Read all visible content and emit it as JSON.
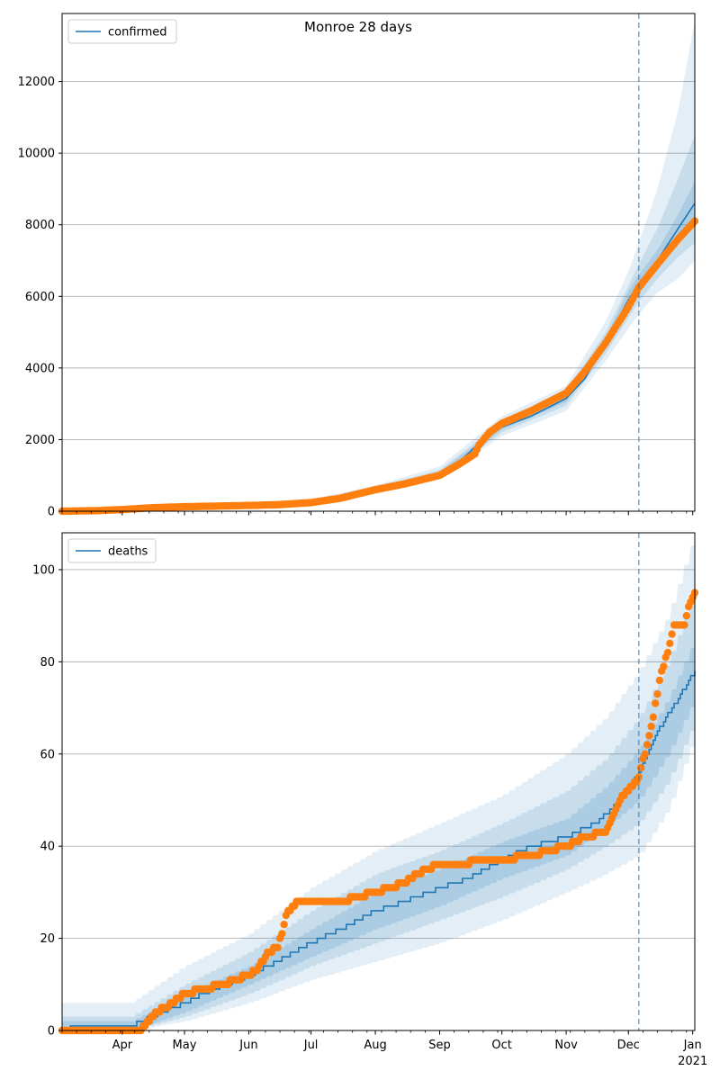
{
  "figure": {
    "title": "Monroe 28 days",
    "vline_date": "2020-12-06",
    "colors": {
      "band": "#1f77b4",
      "line": "#1f77b4",
      "points": "#ff7f0e",
      "grid": "#b0b0b0",
      "vline": "#1f77b4"
    }
  },
  "chart_data": [
    {
      "type": "line",
      "legend": "confirmed",
      "legend_position": "top-left",
      "grid": "horizontal",
      "xlim": [
        "2020-03-03",
        "2021-01-02"
      ],
      "ylim": [
        0,
        13900
      ],
      "yticks": [
        0,
        2000,
        4000,
        6000,
        8000,
        10000,
        12000
      ],
      "x_tick_labels": [
        {
          "date": "2020-04-01",
          "label": "Apr"
        },
        {
          "date": "2020-05-01",
          "label": "May"
        },
        {
          "date": "2020-06-01",
          "label": "Jun"
        },
        {
          "date": "2020-07-01",
          "label": "Jul"
        },
        {
          "date": "2020-08-01",
          "label": "Aug"
        },
        {
          "date": "2020-09-01",
          "label": "Sep"
        },
        {
          "date": "2020-10-01",
          "label": "Oct"
        },
        {
          "date": "2020-11-01",
          "label": "Nov"
        },
        {
          "date": "2020-12-01",
          "label": "Dec"
        },
        {
          "date": "2021-01-01",
          "label": "Jan",
          "sublabel": "2021"
        }
      ],
      "model_median": [
        [
          "2020-03-03",
          5
        ],
        [
          "2020-04-01",
          40
        ],
        [
          "2020-04-15",
          90
        ],
        [
          "2020-05-01",
          125
        ],
        [
          "2020-06-01",
          160
        ],
        [
          "2020-07-01",
          250
        ],
        [
          "2020-07-15",
          370
        ],
        [
          "2020-08-01",
          600
        ],
        [
          "2020-08-15",
          760
        ],
        [
          "2020-09-01",
          1050
        ],
        [
          "2020-09-10",
          1350
        ],
        [
          "2020-09-20",
          1900
        ],
        [
          "2020-10-01",
          2350
        ],
        [
          "2020-10-15",
          2650
        ],
        [
          "2020-11-01",
          3150
        ],
        [
          "2020-11-10",
          3700
        ],
        [
          "2020-11-20",
          4700
        ],
        [
          "2020-12-01",
          5900
        ],
        [
          "2020-12-06",
          6350
        ],
        [
          "2020-12-15",
          7000
        ],
        [
          "2020-12-25",
          7900
        ],
        [
          "2021-01-02",
          8600
        ]
      ],
      "band_outer": [
        [
          "2020-03-03",
          0,
          40
        ],
        [
          "2020-05-01",
          90,
          170
        ],
        [
          "2020-07-01",
          200,
          330
        ],
        [
          "2020-08-01",
          480,
          720
        ],
        [
          "2020-09-01",
          900,
          1250
        ],
        [
          "2020-10-01",
          2100,
          2650
        ],
        [
          "2020-11-01",
          2800,
          3500
        ],
        [
          "2020-11-20",
          4200,
          5300
        ],
        [
          "2020-12-01",
          5100,
          6700
        ],
        [
          "2020-12-06",
          5500,
          7500
        ],
        [
          "2020-12-15",
          6100,
          9000
        ],
        [
          "2020-12-25",
          6500,
          11200
        ],
        [
          "2021-01-02",
          7000,
          13700
        ]
      ],
      "band_mid": [
        [
          "2020-03-03",
          0,
          25
        ],
        [
          "2020-05-01",
          105,
          150
        ],
        [
          "2020-07-01",
          220,
          290
        ],
        [
          "2020-08-01",
          530,
          670
        ],
        [
          "2020-09-01",
          960,
          1150
        ],
        [
          "2020-10-01",
          2200,
          2500
        ],
        [
          "2020-11-01",
          2950,
          3350
        ],
        [
          "2020-11-20",
          4400,
          5000
        ],
        [
          "2020-12-01",
          5400,
          6300
        ],
        [
          "2020-12-06",
          5850,
          6900
        ],
        [
          "2020-12-15",
          6500,
          7900
        ],
        [
          "2020-12-25",
          7100,
          9300
        ],
        [
          "2021-01-02",
          7500,
          10500
        ]
      ],
      "band_inner": [
        [
          "2020-03-03",
          0,
          12
        ],
        [
          "2020-05-01",
          115,
          138
        ],
        [
          "2020-07-01",
          235,
          265
        ],
        [
          "2020-08-01",
          565,
          635
        ],
        [
          "2020-09-01",
          1000,
          1100
        ],
        [
          "2020-10-01",
          2280,
          2420
        ],
        [
          "2020-11-01",
          3050,
          3250
        ],
        [
          "2020-11-20",
          4550,
          4850
        ],
        [
          "2020-12-01",
          5650,
          6150
        ],
        [
          "2020-12-06",
          6100,
          6600
        ],
        [
          "2020-12-15",
          6750,
          7300
        ],
        [
          "2020-12-25",
          7500,
          8300
        ],
        [
          "2021-01-02",
          8000,
          9200
        ]
      ],
      "observed": [
        [
          "2020-03-03",
          0
        ],
        [
          "2020-03-20",
          15
        ],
        [
          "2020-04-01",
          45
        ],
        [
          "2020-04-15",
          95
        ],
        [
          "2020-05-01",
          125
        ],
        [
          "2020-05-15",
          140
        ],
        [
          "2020-06-01",
          160
        ],
        [
          "2020-06-15",
          180
        ],
        [
          "2020-07-01",
          240
        ],
        [
          "2020-07-15",
          360
        ],
        [
          "2020-08-01",
          600
        ],
        [
          "2020-08-15",
          760
        ],
        [
          "2020-09-01",
          1000
        ],
        [
          "2020-09-10",
          1300
        ],
        [
          "2020-09-18",
          1600
        ],
        [
          "2020-09-20",
          1850
        ],
        [
          "2020-09-25",
          2200
        ],
        [
          "2020-10-01",
          2450
        ],
        [
          "2020-10-15",
          2800
        ],
        [
          "2020-11-01",
          3300
        ],
        [
          "2020-11-10",
          3900
        ],
        [
          "2020-11-20",
          4700
        ],
        [
          "2020-12-01",
          5700
        ],
        [
          "2020-12-06",
          6250
        ],
        [
          "2020-12-15",
          6900
        ],
        [
          "2020-12-25",
          7600
        ],
        [
          "2021-01-02",
          8100
        ]
      ]
    },
    {
      "type": "line",
      "legend": "deaths",
      "legend_position": "top-left",
      "grid": "horizontal",
      "xlim": [
        "2020-03-03",
        "2021-01-02"
      ],
      "ylim": [
        0,
        108
      ],
      "yticks": [
        0,
        20,
        40,
        60,
        80,
        100
      ],
      "x_tick_labels": [
        {
          "date": "2020-04-01",
          "label": "Apr"
        },
        {
          "date": "2020-05-01",
          "label": "May"
        },
        {
          "date": "2020-06-01",
          "label": "Jun"
        },
        {
          "date": "2020-07-01",
          "label": "Jul"
        },
        {
          "date": "2020-08-01",
          "label": "Aug"
        },
        {
          "date": "2020-09-01",
          "label": "Sep"
        },
        {
          "date": "2020-10-01",
          "label": "Oct"
        },
        {
          "date": "2020-11-01",
          "label": "Nov"
        },
        {
          "date": "2020-12-01",
          "label": "Dec"
        },
        {
          "date": "2021-01-01",
          "label": "Jan",
          "sublabel": "2021"
        }
      ],
      "model_median": [
        [
          "2020-03-03",
          0
        ],
        [
          "2020-03-10",
          1
        ],
        [
          "2020-04-05",
          1
        ],
        [
          "2020-04-15",
          3
        ],
        [
          "2020-05-01",
          6
        ],
        [
          "2020-05-15",
          9
        ],
        [
          "2020-06-01",
          12
        ],
        [
          "2020-06-15",
          15
        ],
        [
          "2020-07-01",
          19
        ],
        [
          "2020-07-15",
          22
        ],
        [
          "2020-08-01",
          26
        ],
        [
          "2020-08-15",
          28
        ],
        [
          "2020-09-01",
          31
        ],
        [
          "2020-09-15",
          33
        ],
        [
          "2020-10-01",
          37
        ],
        [
          "2020-10-15",
          40
        ],
        [
          "2020-11-01",
          42
        ],
        [
          "2020-11-15",
          45
        ],
        [
          "2020-11-25",
          49
        ],
        [
          "2020-12-06",
          56
        ],
        [
          "2020-12-15",
          65
        ],
        [
          "2020-12-25",
          72
        ],
        [
          "2021-01-02",
          78
        ]
      ],
      "band_outer": [
        [
          "2020-03-03",
          0,
          6
        ],
        [
          "2020-04-05",
          0,
          6
        ],
        [
          "2020-05-01",
          2,
          14
        ],
        [
          "2020-06-01",
          6,
          21
        ],
        [
          "2020-07-01",
          11,
          31
        ],
        [
          "2020-08-01",
          15,
          39
        ],
        [
          "2020-09-01",
          19,
          45
        ],
        [
          "2020-10-01",
          24,
          51
        ],
        [
          "2020-11-01",
          30,
          60
        ],
        [
          "2020-11-20",
          34,
          68
        ],
        [
          "2020-12-06",
          38,
          78
        ],
        [
          "2020-12-20",
          48,
          90
        ],
        [
          "2021-01-02",
          64,
          108
        ]
      ],
      "band_mid": [
        [
          "2020-03-03",
          0,
          3
        ],
        [
          "2020-04-05",
          0,
          3
        ],
        [
          "2020-05-01",
          3,
          10
        ],
        [
          "2020-06-01",
          8,
          17
        ],
        [
          "2020-07-01",
          14,
          26
        ],
        [
          "2020-08-01",
          19,
          34
        ],
        [
          "2020-09-01",
          24,
          39
        ],
        [
          "2020-10-01",
          29,
          45
        ],
        [
          "2020-11-01",
          35,
          52
        ],
        [
          "2020-11-20",
          40,
          59
        ],
        [
          "2020-12-06",
          45,
          68
        ],
        [
          "2020-12-20",
          54,
          80
        ],
        [
          "2021-01-02",
          67,
          95
        ]
      ],
      "band_inner": [
        [
          "2020-03-03",
          0,
          2
        ],
        [
          "2020-04-05",
          0,
          2
        ],
        [
          "2020-05-01",
          4,
          8
        ],
        [
          "2020-06-01",
          10,
          14
        ],
        [
          "2020-07-01",
          16,
          22
        ],
        [
          "2020-08-01",
          22,
          30
        ],
        [
          "2020-09-01",
          27,
          35
        ],
        [
          "2020-10-01",
          33,
          41
        ],
        [
          "2020-11-01",
          38,
          46
        ],
        [
          "2020-11-20",
          44,
          53
        ],
        [
          "2020-12-06",
          50,
          61
        ],
        [
          "2020-12-20",
          60,
          72
        ],
        [
          "2021-01-02",
          72,
          85
        ]
      ],
      "observed": [
        [
          "2020-03-03",
          0
        ],
        [
          "2020-04-05",
          0
        ],
        [
          "2020-04-10",
          0
        ],
        [
          "2020-04-15",
          3
        ],
        [
          "2020-04-25",
          6
        ],
        [
          "2020-05-01",
          8
        ],
        [
          "2020-05-10",
          9
        ],
        [
          "2020-05-20",
          10
        ],
        [
          "2020-06-01",
          12
        ],
        [
          "2020-06-05",
          13
        ],
        [
          "2020-06-10",
          17
        ],
        [
          "2020-06-15",
          18
        ],
        [
          "2020-06-18",
          23
        ],
        [
          "2020-06-20",
          26
        ],
        [
          "2020-06-25",
          28
        ],
        [
          "2020-07-15",
          28
        ],
        [
          "2020-08-01",
          30
        ],
        [
          "2020-08-15",
          32
        ],
        [
          "2020-08-25",
          35
        ],
        [
          "2020-09-01",
          36
        ],
        [
          "2020-10-01",
          37
        ],
        [
          "2020-10-15",
          38
        ],
        [
          "2020-11-01",
          40
        ],
        [
          "2020-11-10",
          42
        ],
        [
          "2020-11-20",
          43
        ],
        [
          "2020-11-27",
          50
        ],
        [
          "2020-12-01",
          52
        ],
        [
          "2020-12-06",
          55
        ],
        [
          "2020-12-10",
          62
        ],
        [
          "2020-12-13",
          68
        ],
        [
          "2020-12-16",
          76
        ],
        [
          "2020-12-20",
          82
        ],
        [
          "2020-12-23",
          88
        ],
        [
          "2020-12-28",
          88
        ],
        [
          "2020-12-30",
          92
        ],
        [
          "2021-01-02",
          95
        ]
      ]
    }
  ]
}
